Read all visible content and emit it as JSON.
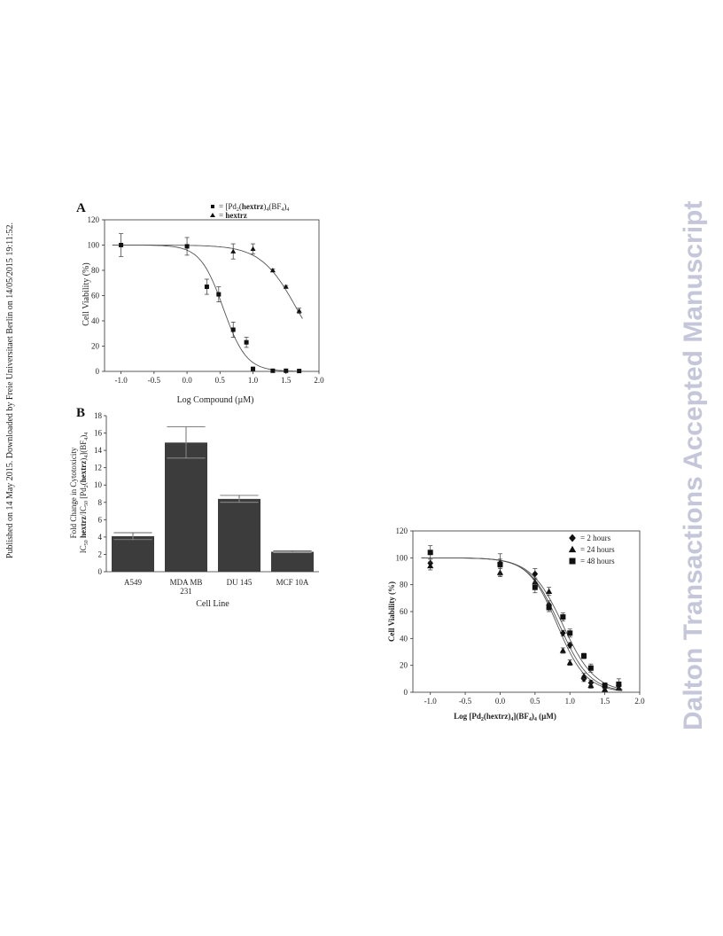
{
  "side_text": {
    "left": "Published on 14 May 2015. Downloaded by Freie Universitaet Berlin on 14/05/2015 19:11:52.",
    "right": "Dalton Transactions Accepted Manuscript"
  },
  "chart_data": [
    {
      "id": "A",
      "panel_label": "A",
      "type": "scatter",
      "xlabel": "Log Compound (µM)",
      "ylabel": "Cell Viability (%)",
      "xlim": [
        -1.25,
        2.0
      ],
      "ylim": [
        0,
        120
      ],
      "xticks": [
        -1.0,
        -0.5,
        0.0,
        0.5,
        1.0,
        1.5,
        2.0
      ],
      "xtick_labels": [
        "-1.0",
        "-0.5",
        "0.0",
        "0.5",
        "1.0",
        "1.5",
        "2.0"
      ],
      "yticks": [
        0,
        20,
        40,
        60,
        80,
        100,
        120
      ],
      "grid": false,
      "legend_position": "top-right",
      "series": [
        {
          "legend_pre": "= [Pd",
          "legend_sub1": "2",
          "legend_mid": "(",
          "legend_bold": "hextrz",
          "legend_mid2": ")",
          "legend_sub2": "4",
          "legend_mid3": "(BF",
          "legend_sub3": "4",
          "legend_mid4": ")",
          "legend_sub4": "4",
          "marker": "square",
          "x": [
            -1.0,
            0.0,
            0.3,
            0.48,
            0.7,
            0.9,
            1.0,
            1.3,
            1.5,
            1.7
          ],
          "y": [
            100,
            99,
            67,
            61,
            33,
            23,
            2,
            0.5,
            0.5,
            0.3
          ],
          "err": [
            9,
            7,
            6,
            6,
            6,
            4,
            1,
            0.5,
            0.5,
            0.5
          ],
          "fit": {
            "top": 100,
            "bottom": 0,
            "logec50": 0.55,
            "hill": 2.5
          }
        },
        {
          "legend_pre": "= ",
          "legend_bold": "hextrz",
          "marker": "triangle",
          "x": [
            0.7,
            1.0,
            1.3,
            1.5,
            1.7
          ],
          "y": [
            95,
            97,
            80,
            67,
            48
          ],
          "err": [
            6,
            4,
            1,
            1,
            2
          ],
          "fit": {
            "top": 100,
            "bottom": 0,
            "logec50": 1.66,
            "hill": 1.6
          }
        }
      ]
    },
    {
      "id": "B",
      "panel_label": "B",
      "type": "bar",
      "xlabel": "Cell Line",
      "ylabel_line1": "Fold Change in Cytotoxicity",
      "ylabel_line2": "IC50 hextrz/IC50 [Pd2(hextrz)4](BF4)4",
      "categories": [
        "A549",
        "MDA  MB\n231",
        "DU 145",
        "MCF 10A"
      ],
      "category_lines": [
        [
          "A549"
        ],
        [
          "MDA  MB",
          "231"
        ],
        [
          "DU 145"
        ],
        [
          "MCF 10A"
        ]
      ],
      "values": [
        4.1,
        14.9,
        8.4,
        2.3
      ],
      "errors": [
        0.4,
        1.8,
        0.4,
        0.1
      ],
      "ylim": [
        0,
        18
      ],
      "yticks": [
        0,
        2,
        4,
        6,
        8,
        10,
        12,
        14,
        16,
        18
      ],
      "bar_color": "#3c3c3c",
      "grid": false
    },
    {
      "id": "C",
      "type": "scatter",
      "xlabel": "Log [Pd2(hextrz)4](BF4)4 (µM)",
      "ylabel": "Cell Viability (%)",
      "xlim": [
        -1.25,
        2.0
      ],
      "ylim": [
        0,
        120
      ],
      "xticks": [
        -1.0,
        -0.5,
        0.0,
        0.5,
        1.0,
        1.5,
        2.0
      ],
      "xtick_labels": [
        "-1.0",
        "-0.5",
        "0.0",
        "0.5",
        "1.0",
        "1.5",
        "2.0"
      ],
      "yticks": [
        0,
        20,
        40,
        60,
        80,
        100,
        120
      ],
      "grid": false,
      "legend_position": "top-right",
      "series": [
        {
          "name": "= 2 hours",
          "marker": "diamond",
          "x": [
            -1.0,
            0.0,
            0.5,
            0.7,
            0.9,
            1.0,
            1.2,
            1.3,
            1.5,
            1.7
          ],
          "y": [
            96,
            96,
            88,
            65,
            44,
            35,
            10,
            7,
            4,
            5
          ],
          "err": [
            3,
            3,
            4,
            3,
            2,
            2,
            2,
            2,
            2,
            2
          ],
          "fit": {
            "top": 100,
            "bottom": 0,
            "logec50": 0.85,
            "hill": 2.0
          }
        },
        {
          "name": "= 24 hours",
          "marker": "triangle",
          "x": [
            -1.0,
            0.0,
            0.5,
            0.7,
            0.9,
            1.0,
            1.2,
            1.3,
            1.5,
            1.7
          ],
          "y": [
            94,
            89,
            82,
            75,
            31,
            22,
            12,
            5,
            2,
            3
          ],
          "err": [
            3,
            3,
            3,
            3,
            2,
            2,
            2,
            2,
            1,
            1
          ],
          "fit": {
            "top": 100,
            "bottom": 0,
            "logec50": 0.82,
            "hill": 2.1
          }
        },
        {
          "name": "= 48 hours",
          "marker": "square",
          "x": [
            -1.0,
            0.0,
            0.5,
            0.7,
            0.9,
            1.0,
            1.2,
            1.3,
            1.5,
            1.7
          ],
          "y": [
            104,
            95,
            78,
            63,
            56,
            44,
            27,
            18,
            5,
            6
          ],
          "err": [
            5,
            8,
            4,
            3,
            3,
            3,
            2,
            3,
            2,
            4
          ],
          "fit": {
            "top": 100,
            "bottom": 0,
            "logec50": 0.9,
            "hill": 1.9
          }
        }
      ]
    }
  ]
}
